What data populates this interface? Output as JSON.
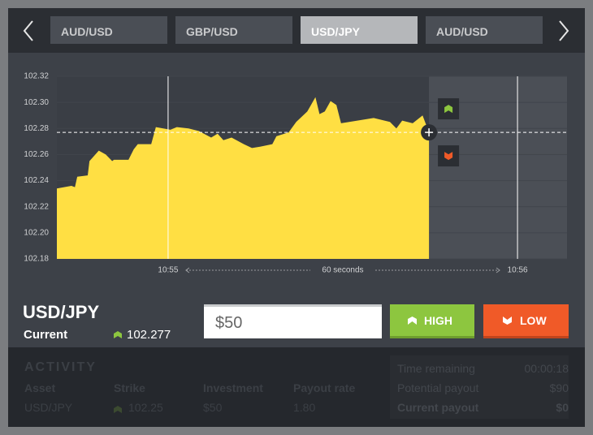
{
  "nav": {
    "tabs": [
      "AUD/USD",
      "GBP/USD",
      "USD/JPY",
      "AUD/USD"
    ],
    "active_tab": 2
  },
  "chart_data": {
    "type": "area",
    "color": "#ffdf43",
    "x": [
      39280.9,
      39283.4,
      39284.0,
      39284.4,
      39286.2,
      39286.5,
      39288.1,
      39289.3,
      39290.4,
      39290.7,
      39293.2,
      39294.1,
      39294.8,
      39297.1,
      39297.9,
      39300.4,
      39301.5,
      39303.5,
      39305.3,
      39307.4,
      39308.5,
      39309.5,
      39310.9,
      39313.0,
      39314.4,
      39315.8,
      39317.9,
      39318.6,
      39320.7,
      39322.0,
      39323.9,
      39325.3,
      39326.0,
      39326.9,
      39327.9,
      39328.9,
      39329.7,
      39332.5,
      39335.3,
      39338.1,
      39339.2,
      39340.2,
      39342.0,
      39343.7,
      39344.8
    ],
    "values": [
      102.234,
      102.236,
      102.235,
      102.243,
      102.244,
      102.255,
      102.263,
      102.26,
      102.255,
      102.256,
      102.256,
      102.264,
      102.268,
      102.268,
      102.281,
      102.279,
      102.281,
      102.28,
      102.278,
      102.273,
      102.276,
      102.271,
      102.273,
      102.268,
      102.265,
      102.266,
      102.268,
      102.274,
      102.277,
      102.285,
      102.293,
      102.304,
      102.291,
      102.293,
      102.301,
      102.298,
      102.284,
      102.286,
      102.288,
      102.285,
      102.28,
      102.286,
      102.284,
      102.29,
      102.277
    ],
    "xlim": [
      39280.9,
      39368.5
    ],
    "ylim": [
      102.18,
      102.32
    ],
    "xticks": [
      {
        "value": 39300,
        "label": "10:55"
      },
      {
        "value": 39360,
        "label": "10:56"
      }
    ],
    "yticks": [
      102.18,
      {
        "value": 102.2,
        "label": "102.20"
      },
      102.22,
      102.24,
      102.26,
      102.28,
      {
        "value": 102.3,
        "label": "102.30"
      },
      102.32
    ],
    "annotation": "60 seconds"
  },
  "ticker": {
    "symbol": "USD/JPY",
    "label": "Current",
    "price": 102.277
  },
  "trade": {
    "amount": "$50",
    "high": "HIGH",
    "low": "LOW"
  },
  "activity": {
    "title": "ACTIVITY",
    "columns": [
      "Asset",
      "Strike",
      "Investment",
      "Payout rate"
    ],
    "rows": [
      [
        "USD/JPY",
        "102.25",
        "$50",
        "1.80"
      ]
    ],
    "summary": [
      {
        "label": "Time remaining",
        "value": "00:00:18"
      },
      {
        "label": "Potential payout",
        "value": "$90"
      },
      {
        "label": "Current payout",
        "value": "$0"
      }
    ]
  }
}
